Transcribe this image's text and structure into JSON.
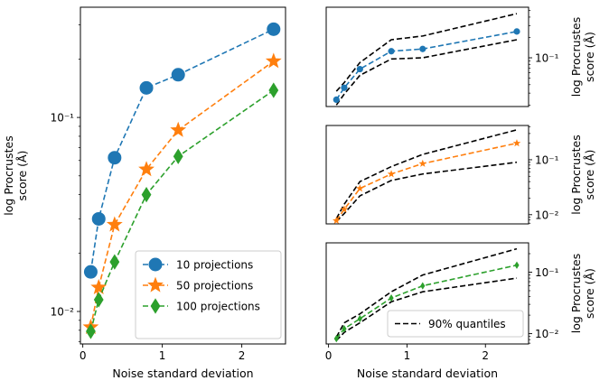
{
  "chart_data": [
    {
      "type": "line",
      "xlabel": "Noise standard deviation",
      "ylabel": "log Procrustes\nscore (Å)",
      "yscale": "log",
      "xlim": [
        -0.03,
        2.55
      ],
      "ylim": [
        0.0068,
        0.37
      ],
      "xticks": [
        {
          "v": 0,
          "label": "0"
        },
        {
          "v": 1,
          "label": "1"
        },
        {
          "v": 2,
          "label": "2"
        }
      ],
      "yticks": [
        {
          "v": 0.01,
          "label": "10⁻²"
        },
        {
          "v": 0.1,
          "label": "10⁻¹"
        }
      ],
      "legend": {
        "position": "lower-right"
      },
      "series": [
        {
          "name": "10 projections",
          "color": "#1f77b4",
          "marker": "circle",
          "x": [
            0.1,
            0.2,
            0.4,
            0.8,
            1.2,
            2.4
          ],
          "y": [
            0.016,
            0.03,
            0.062,
            0.142,
            0.166,
            0.285
          ]
        },
        {
          "name": "50 projections",
          "color": "#ff7f0e",
          "marker": "star",
          "x": [
            0.1,
            0.2,
            0.4,
            0.8,
            1.2,
            2.4
          ],
          "y": [
            0.0083,
            0.0133,
            0.028,
            0.054,
            0.086,
            0.195
          ]
        },
        {
          "name": "100 projections",
          "color": "#2ca02c",
          "marker": "diamond",
          "x": [
            0.1,
            0.2,
            0.4,
            0.8,
            1.2,
            2.4
          ],
          "y": [
            0.0079,
            0.0115,
            0.018,
            0.04,
            0.063,
            0.138
          ]
        }
      ]
    },
    {
      "type": "line",
      "xlabel": "",
      "ylabel": "log Procrustes\nscore (Å)",
      "yscale": "log",
      "xlim": [
        -0.03,
        2.55
      ],
      "ylim": [
        0.019,
        0.56
      ],
      "xticks": [],
      "yticks": [
        {
          "v": 0.1,
          "label": "10⁻¹"
        }
      ],
      "series": [
        {
          "name": "",
          "color": "#1f77b4",
          "marker": "circle",
          "x": [
            0.1,
            0.2,
            0.4,
            0.8,
            1.2,
            2.4
          ],
          "y": [
            0.024,
            0.036,
            0.068,
            0.125,
            0.135,
            0.245
          ]
        }
      ],
      "quantiles": {
        "upper": [
          0.032,
          0.043,
          0.085,
          0.185,
          0.21,
          0.45
        ],
        "lower": [
          0.02,
          0.029,
          0.055,
          0.096,
          0.1,
          0.185
        ]
      }
    },
    {
      "type": "line",
      "xlabel": "",
      "ylabel": "log Procrustes\nscore (Å)",
      "yscale": "log",
      "xlim": [
        -0.03,
        2.55
      ],
      "ylim": [
        0.0068,
        0.42
      ],
      "xticks": [],
      "yticks": [
        {
          "v": 0.01,
          "label": "10⁻²"
        },
        {
          "v": 0.1,
          "label": "10⁻¹"
        }
      ],
      "series": [
        {
          "name": "",
          "color": "#ff7f0e",
          "marker": "star",
          "x": [
            0.1,
            0.2,
            0.4,
            0.8,
            1.2,
            2.4
          ],
          "y": [
            0.0078,
            0.0125,
            0.03,
            0.055,
            0.085,
            0.2
          ]
        }
      ],
      "quantiles": {
        "upper": [
          0.0085,
          0.0155,
          0.04,
          0.075,
          0.125,
          0.35
        ],
        "lower": [
          0.0075,
          0.0105,
          0.022,
          0.042,
          0.055,
          0.09
        ]
      }
    },
    {
      "type": "line",
      "xlabel": "Noise standard deviation",
      "ylabel": "log Procrustes\nscore (Å)",
      "yscale": "log",
      "xlim": [
        -0.03,
        2.55
      ],
      "ylim": [
        0.0068,
        0.3
      ],
      "xticks": [
        {
          "v": 0,
          "label": "0"
        },
        {
          "v": 1,
          "label": "1"
        },
        {
          "v": 2,
          "label": "2"
        }
      ],
      "yticks": [
        {
          "v": 0.01,
          "label": "10⁻²"
        },
        {
          "v": 0.1,
          "label": "10⁻¹"
        }
      ],
      "legend": {
        "position": "lower-right"
      },
      "series": [
        {
          "name": "",
          "color": "#2ca02c",
          "marker": "diamond",
          "x": [
            0.1,
            0.2,
            0.4,
            0.8,
            1.2,
            2.4
          ],
          "y": [
            0.0083,
            0.012,
            0.0175,
            0.038,
            0.06,
            0.13
          ]
        }
      ],
      "quantiles": {
        "label": "90% quantiles",
        "upper": [
          0.0088,
          0.015,
          0.021,
          0.048,
          0.09,
          0.24
        ],
        "lower": [
          0.0077,
          0.0105,
          0.015,
          0.033,
          0.048,
          0.08
        ]
      }
    }
  ]
}
